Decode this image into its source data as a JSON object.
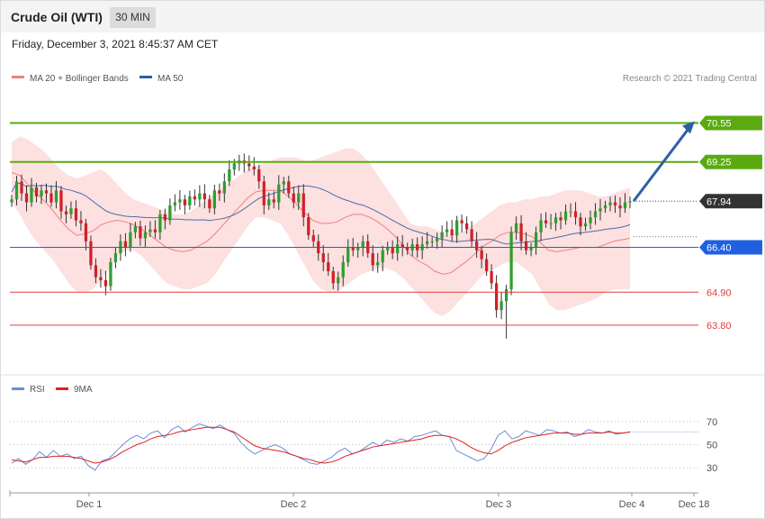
{
  "header": {
    "title": "Crude Oil (WTI)",
    "timeframe": "30 MIN",
    "date": "Friday, December 3, 2021 8:45:37 AM CET"
  },
  "legend": {
    "ma20": "MA 20 + Bollinger Bands",
    "ma50": "MA 50",
    "copyright": "Research © 2021 Trading Central",
    "rsi": "RSI",
    "ma9": "9MA"
  },
  "colors": {
    "bull": "#2e9e2e",
    "bear": "#d0202a",
    "band_fill": "#fde0e0",
    "ma20": "#f08080",
    "ma50": "#4a6fa8",
    "resistance": "#5aaa10",
    "support": "#2060e0",
    "target": "#e04040",
    "current": "#333333",
    "arrow": "#2e5ea8",
    "rsi": "#6b8ed6",
    "rsi_ma": "#e02020"
  },
  "chart_data": [
    {
      "type": "candlestick",
      "title": "",
      "x_ticks": [
        "Dec 1",
        "Dec 2",
        "Dec 3",
        "Dec 4",
        "Dec 18"
      ],
      "ylim": [
        62.2,
        71.8
      ],
      "levels": [
        {
          "label": "70.55",
          "value": 70.55,
          "kind": "resistance"
        },
        {
          "label": "69.25",
          "value": 69.25,
          "kind": "resistance"
        },
        {
          "label": "67.94",
          "value": 67.94,
          "kind": "current"
        },
        {
          "label": "66.40",
          "value": 66.4,
          "kind": "support"
        },
        {
          "label": "64.90",
          "value": 64.9,
          "kind": "target"
        },
        {
          "label": "63.80",
          "value": 63.8,
          "kind": "target"
        }
      ],
      "projection": {
        "from": 67.94,
        "to": 70.55
      },
      "closes": [
        68.0,
        68.6,
        68.2,
        67.9,
        68.4,
        68.1,
        68.3,
        68.2,
        67.9,
        68.3,
        67.6,
        67.5,
        67.7,
        67.3,
        67.2,
        66.6,
        65.8,
        65.4,
        65.3,
        65.1,
        65.9,
        66.2,
        66.6,
        66.4,
        66.9,
        67.1,
        66.7,
        66.9,
        67.0,
        66.9,
        67.5,
        67.3,
        67.8,
        67.9,
        68.0,
        67.8,
        68.1,
        68.0,
        68.2,
        68.0,
        67.7,
        68.3,
        68.2,
        68.6,
        69.0,
        69.2,
        69.3,
        69.2,
        69.1,
        69.0,
        68.6,
        67.8,
        68.0,
        67.9,
        68.5,
        68.6,
        68.2,
        67.9,
        68.2,
        67.4,
        66.8,
        66.6,
        66.2,
        65.9,
        65.6,
        65.2,
        65.4,
        65.9,
        66.4,
        66.3,
        66.4,
        66.6,
        66.2,
        65.8,
        65.9,
        66.3,
        66.4,
        66.2,
        66.5,
        66.4,
        66.3,
        66.5,
        66.3,
        66.5,
        66.6,
        66.6,
        66.7,
        66.9,
        67.0,
        66.8,
        67.3,
        67.2,
        67.0,
        66.6,
        66.3,
        66.0,
        65.6,
        65.2,
        64.3,
        64.6,
        65.0,
        66.9,
        67.2,
        66.6,
        66.3,
        66.4,
        66.9,
        67.3,
        67.2,
        67.2,
        67.4,
        67.3,
        67.6,
        67.6,
        67.4,
        67.1,
        67.2,
        67.4,
        67.6,
        67.7,
        67.8,
        67.9,
        67.8,
        67.7,
        67.9,
        67.94
      ],
      "band_upper": [
        69.9,
        70.1,
        70.0,
        69.8,
        69.6,
        69.3,
        69.0,
        68.8,
        68.7,
        68.8,
        68.9,
        69.0,
        68.8,
        68.5,
        68.2,
        68.0,
        67.9,
        67.8,
        67.7,
        67.6,
        67.5,
        67.5,
        67.6,
        67.8,
        68.0,
        68.2,
        68.4,
        68.6,
        68.8,
        69.0,
        69.1,
        69.2,
        69.3,
        69.4,
        69.4,
        69.4,
        69.3,
        69.3,
        69.4,
        69.5,
        69.6,
        69.7,
        69.7,
        69.5,
        69.2,
        68.8,
        68.4,
        68.0,
        67.6,
        67.2,
        67.1,
        67.1,
        67.0,
        66.9,
        66.8,
        66.9,
        67.0,
        67.2,
        67.4,
        67.6,
        67.8,
        67.9,
        67.9,
        68.0,
        68.0,
        68.1,
        68.1,
        68.2,
        68.3,
        68.3,
        68.3,
        68.2,
        68.1,
        68.1,
        68.2,
        68.3,
        68.4
      ],
      "band_lower": [
        67.9,
        67.5,
        67.0,
        66.6,
        66.3,
        66.0,
        65.6,
        65.2,
        64.9,
        64.9,
        65.0,
        65.3,
        65.7,
        66.1,
        66.3,
        66.3,
        66.1,
        65.8,
        65.5,
        65.2,
        65.1,
        65.0,
        65.0,
        65.1,
        65.2,
        65.5,
        65.9,
        66.3,
        66.7,
        67.1,
        67.4,
        67.4,
        67.3,
        67.2,
        66.8,
        66.3,
        65.8,
        65.3,
        65.0,
        64.9,
        64.9,
        65.1,
        65.3,
        65.5,
        65.6,
        65.7,
        65.7,
        65.6,
        65.4,
        65.1,
        64.8,
        64.5,
        64.2,
        64.1,
        64.3,
        64.6,
        64.9,
        65.2,
        65.5,
        65.6,
        65.8,
        65.9,
        65.9,
        65.7,
        65.5,
        65.0,
        64.5,
        64.3,
        64.3,
        64.4,
        64.5,
        64.6,
        64.7,
        64.9,
        65.0,
        65.0,
        65.0
      ]
    },
    {
      "type": "line",
      "title": "",
      "yticks": [
        30,
        50,
        70
      ],
      "ylim": [
        20,
        80
      ],
      "series": [
        {
          "name": "RSI",
          "values": [
            34,
            38,
            33,
            37,
            44,
            39,
            45,
            40,
            42,
            38,
            40,
            32,
            28,
            36,
            38,
            44,
            50,
            55,
            58,
            55,
            60,
            62,
            56,
            63,
            66,
            61,
            65,
            68,
            66,
            64,
            67,
            63,
            60,
            52,
            46,
            42,
            45,
            48,
            50,
            47,
            42,
            40,
            37,
            34,
            33,
            36,
            39,
            44,
            47,
            42,
            44,
            48,
            52,
            49,
            54,
            52,
            55,
            53,
            57,
            58,
            60,
            62,
            58,
            57,
            45,
            42,
            39,
            36,
            38,
            46,
            58,
            62,
            55,
            57,
            62,
            60,
            58,
            63,
            62,
            60,
            61,
            57,
            59,
            63,
            61,
            60,
            62,
            59,
            60,
            61
          ]
        },
        {
          "name": "9MA",
          "values": [
            37,
            36,
            35,
            37,
            39,
            39,
            40,
            40,
            40,
            39,
            38,
            36,
            34,
            35,
            37,
            40,
            44,
            47,
            50,
            52,
            55,
            57,
            58,
            59,
            61,
            62,
            63,
            64,
            65,
            65,
            65,
            63,
            61,
            57,
            53,
            49,
            47,
            46,
            45,
            44,
            42,
            40,
            38,
            37,
            35,
            34,
            35,
            37,
            40,
            42,
            44,
            46,
            48,
            49,
            50,
            51,
            52,
            53,
            54,
            55,
            57,
            58,
            58,
            57,
            55,
            52,
            48,
            45,
            43,
            42,
            45,
            49,
            52,
            54,
            56,
            57,
            58,
            59,
            60,
            60,
            60,
            59,
            59,
            60,
            60,
            60,
            61,
            60,
            60,
            61
          ]
        }
      ]
    }
  ]
}
